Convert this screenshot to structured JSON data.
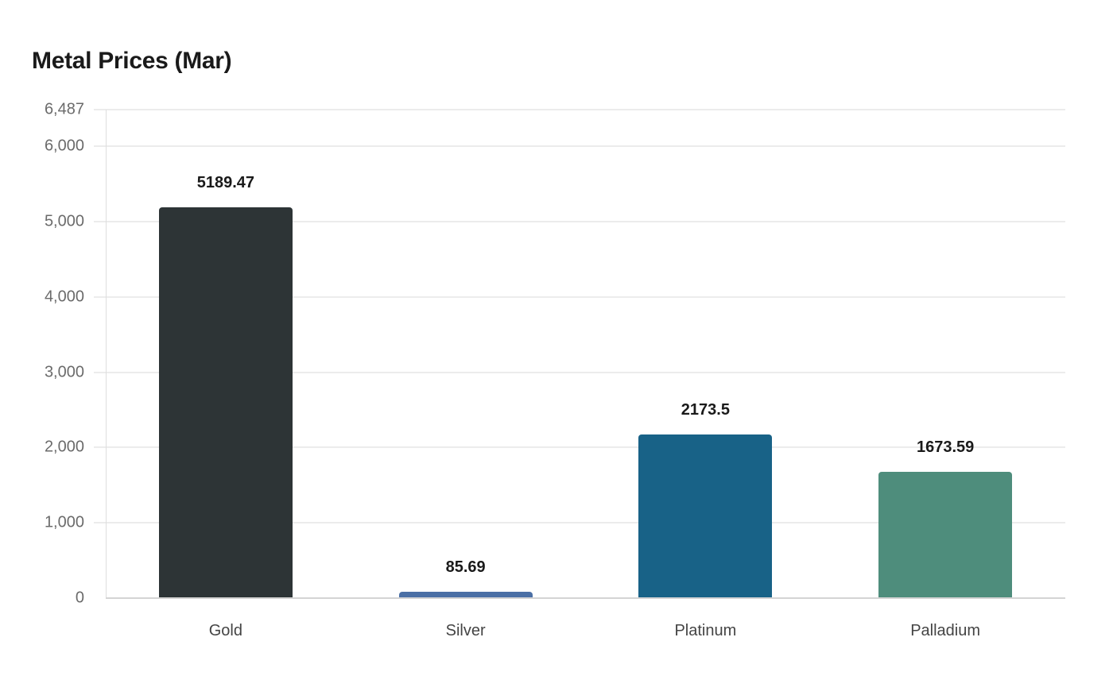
{
  "title": "Metal Prices (Mar)",
  "chart_data": {
    "type": "bar",
    "title": "Metal Prices (Mar)",
    "xlabel": "",
    "ylabel": "",
    "categories": [
      "Gold",
      "Silver",
      "Platinum",
      "Palladium"
    ],
    "values": [
      5189.47,
      85.69,
      2173.5,
      1673.59
    ],
    "colors": [
      "#2d3436",
      "#4a6fa5",
      "#186287",
      "#4e8d7c"
    ],
    "ylim": [
      0,
      6487
    ],
    "yticks": [
      0,
      1000,
      2000,
      3000,
      4000,
      5000,
      6000,
      6487
    ],
    "ytick_labels": [
      "0",
      "1,000",
      "2,000",
      "3,000",
      "4,000",
      "5,000",
      "6,000",
      "6,487"
    ],
    "grid": true,
    "legend": null,
    "data_labels": [
      "5189.47",
      "85.69",
      "2173.5",
      "1673.59"
    ]
  }
}
